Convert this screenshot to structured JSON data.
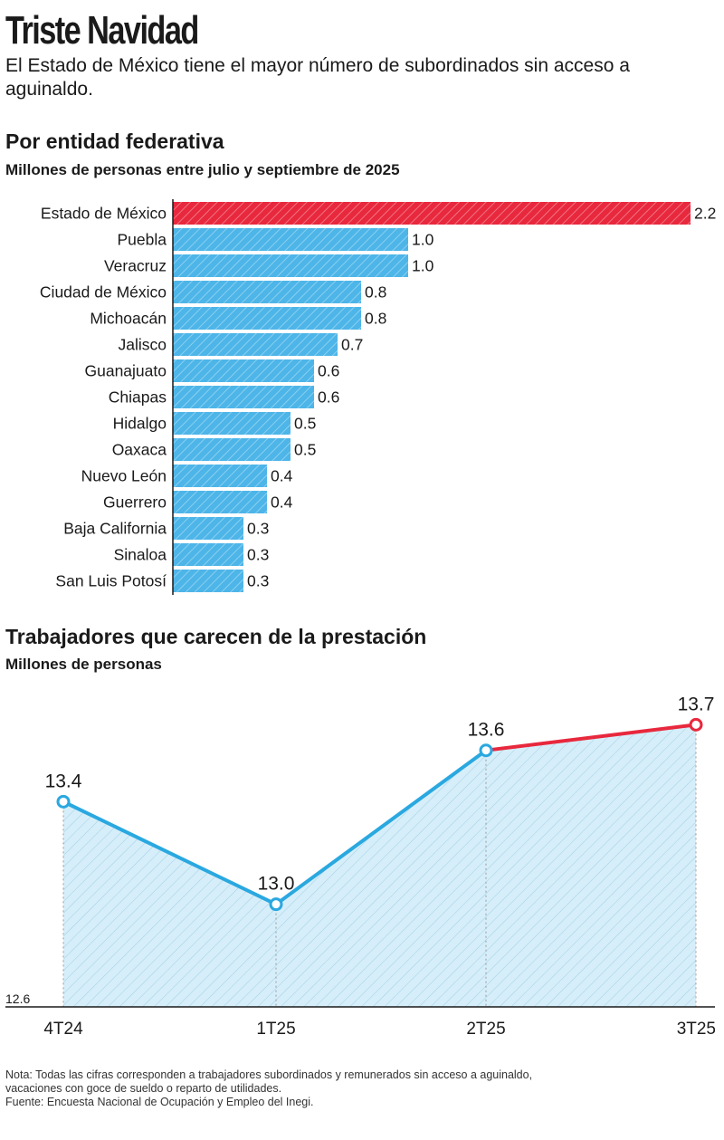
{
  "header": {
    "title": "Triste Navidad",
    "subtitle": "El Estado de México tiene el mayor número de subordinados sin acceso a aguinaldo."
  },
  "colors": {
    "highlight": "#e8283d",
    "bar": "#4db5e8",
    "line": "#2aa8e0",
    "area": "#d6eef9",
    "axis": "#1a1a1a"
  },
  "chart_data": [
    {
      "type": "bar",
      "orientation": "horizontal",
      "title": "Por entidad federativa",
      "subtitle": "Millones de personas entre julio y septiembre de 2025",
      "categories": [
        "Estado de México",
        "Puebla",
        "Veracruz",
        "Ciudad de México",
        "Michoacán",
        "Jalisco",
        "Guanajuato",
        "Chiapas",
        "Hidalgo",
        "Oaxaca",
        "Nuevo León",
        "Guerrero",
        "Baja California",
        "Sinaloa",
        "San Luis Potosí"
      ],
      "values": [
        2.2,
        1.0,
        1.0,
        0.8,
        0.8,
        0.7,
        0.6,
        0.6,
        0.5,
        0.5,
        0.4,
        0.4,
        0.3,
        0.3,
        0.3
      ],
      "value_labels": [
        "2.2",
        "1.0",
        "1.0",
        "0.8",
        "0.8",
        "0.7",
        "0.6",
        "0.6",
        "0.5",
        "0.5",
        "0.4",
        "0.4",
        "0.3",
        "0.3",
        "0.3"
      ],
      "highlighted": [
        "Estado de México"
      ],
      "xlim": [
        0,
        2.2
      ],
      "grid": false
    },
    {
      "type": "area",
      "title": "Trabajadores que carecen de la prestación",
      "subtitle": "Millones de personas",
      "x": [
        "4T24",
        "1T25",
        "2T25",
        "3T25"
      ],
      "values": [
        13.4,
        13.0,
        13.6,
        13.7
      ],
      "value_labels": [
        "13.4",
        "13.0",
        "13.6",
        "13.7"
      ],
      "highlighted_segment": [
        "2T25",
        "3T25"
      ],
      "ylim": [
        12.6,
        13.85
      ],
      "y_baseline_label": "12.6",
      "grid": false
    }
  ],
  "notes": {
    "nota": "Nota: Todas las cifras corresponden a trabajadores subordinados y remunerados sin acceso a aguinaldo, vacaciones con goce de sueldo o reparto de utilidades.",
    "fuente": "Fuente: Encuesta Nacional de Ocupación y Empleo del Inegi."
  }
}
